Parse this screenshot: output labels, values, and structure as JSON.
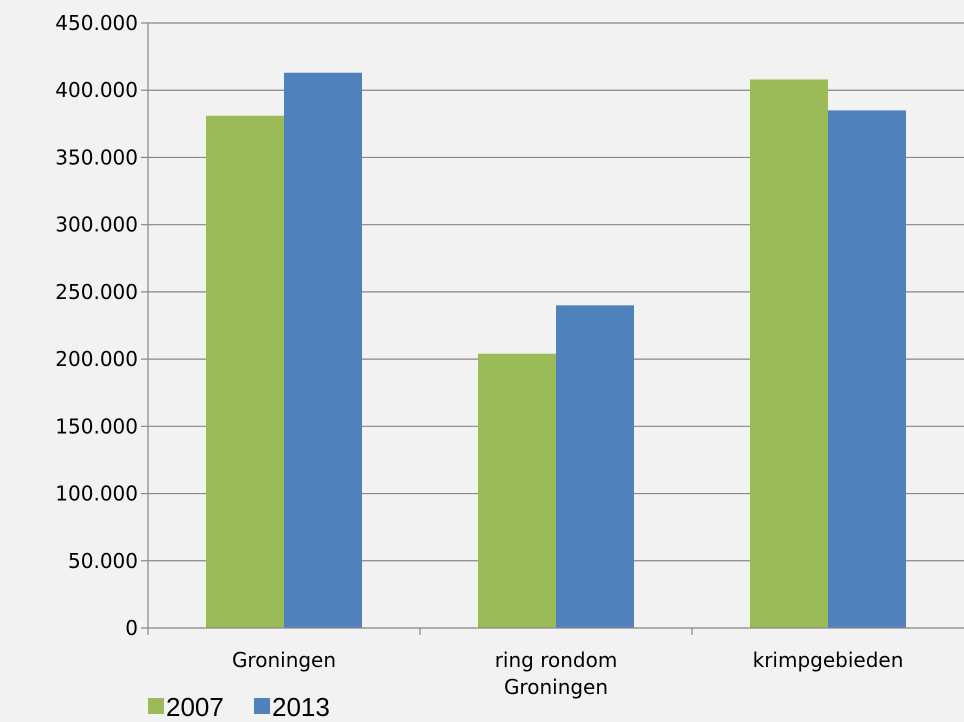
{
  "chart_data": {
    "type": "bar",
    "categories": [
      [
        "Groningen"
      ],
      [
        "ring rondom",
        "Groningen"
      ],
      [
        "krimpgebieden"
      ]
    ],
    "series": [
      {
        "name": "2007",
        "color": "#9bbb59",
        "values": [
          381000,
          204000,
          408000
        ]
      },
      {
        "name": "2013",
        "color": "#4f81bd",
        "values": [
          413000,
          240000,
          385000
        ]
      }
    ],
    "ylim": [
      0,
      450000
    ],
    "yticks": [
      0,
      50000,
      100000,
      150000,
      200000,
      250000,
      300000,
      350000,
      400000,
      450000
    ],
    "ytick_labels": [
      "0",
      "50.000",
      "100.000",
      "150.000",
      "200.000",
      "250.000",
      "300.000",
      "350.000",
      "400.000",
      "450.000"
    ],
    "grid": true,
    "gridline_color": "#868686",
    "legend_position": "bottom-left",
    "title": "",
    "xlabel": "",
    "ylabel": ""
  }
}
